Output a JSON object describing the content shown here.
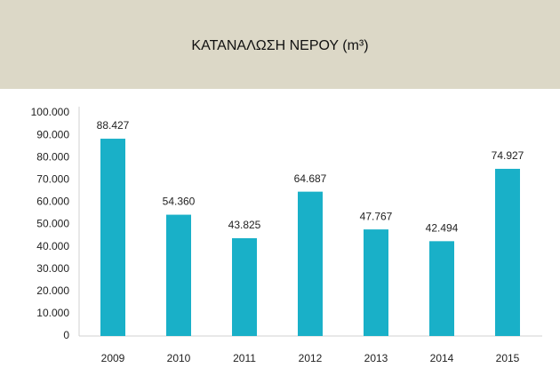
{
  "chart_data": {
    "type": "bar",
    "title": "ΚΑΤΑΝΑΛΩΣΗ ΝΕΡΟΥ (m³)",
    "categories": [
      "2009",
      "2010",
      "2011",
      "2012",
      "2013",
      "2014",
      "2015"
    ],
    "values": [
      88427,
      54360,
      43825,
      64687,
      47767,
      42494,
      74927
    ],
    "value_labels": [
      "88.427",
      "54.360",
      "43.825",
      "64.687",
      "47.767",
      "42.494",
      "74.927"
    ],
    "color": "#19b0c8",
    "ylim": [
      0,
      100000
    ],
    "yticks": [
      0,
      {
        "value": 10000,
        "label": "10.000"
      },
      {
        "value": 20000,
        "label": "20.000"
      },
      {
        "value": 30000,
        "label": "30.000"
      },
      {
        "value": 40000,
        "label": "40.000"
      },
      {
        "value": 50000,
        "label": "50.000"
      },
      {
        "value": 60000,
        "label": "60.000"
      },
      {
        "value": 70000,
        "label": "70.000"
      },
      {
        "value": 80000,
        "label": "80.000"
      },
      {
        "value": 90000,
        "label": "90.000"
      },
      {
        "value": 100000,
        "label": "100.000"
      }
    ],
    "grid": false
  }
}
